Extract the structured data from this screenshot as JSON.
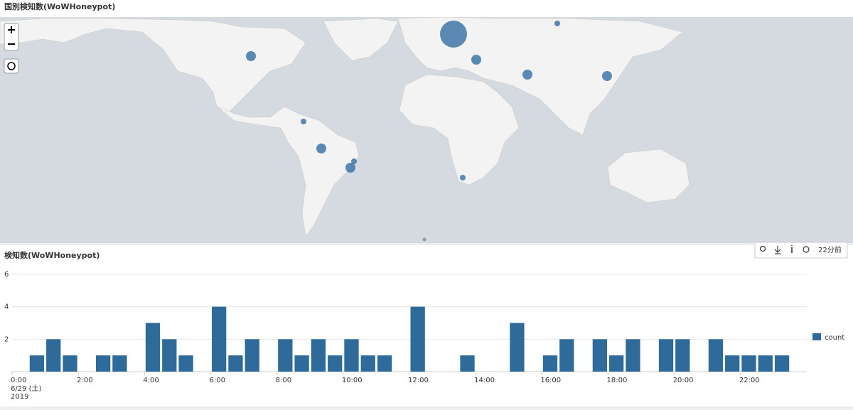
{
  "map_panel": {
    "title": "国別検知数(WoWHoneypot)"
  },
  "toolbar": {
    "time_ago": "22分前"
  },
  "chart_data": {
    "type": "bar",
    "title": "検知数(WoWHoneypot)",
    "x": [
      0.5,
      1,
      1.5,
      2.5,
      3,
      4,
      4.5,
      5,
      6,
      6.5,
      7,
      8,
      8.5,
      9,
      9.5,
      10,
      10.5,
      11,
      12,
      13.5,
      15,
      16,
      16.5,
      17.5,
      18,
      18.5,
      19.5,
      20,
      21,
      21.5,
      22,
      22.5,
      23
    ],
    "series": [
      {
        "name": "count",
        "color": "#2f6b9a",
        "values": [
          1,
          2,
          1,
          1,
          1,
          3,
          2,
          1,
          4,
          1,
          2,
          2,
          1,
          2,
          1,
          2,
          1,
          1,
          4,
          1,
          3,
          1,
          2,
          2,
          1,
          2,
          2,
          2,
          2,
          1,
          1,
          1,
          1
        ]
      }
    ],
    "xlim": [
      0,
      24
    ],
    "xticks": [
      {
        "value": 0,
        "label": "0:00"
      },
      {
        "value": 2,
        "label": "2:00"
      },
      {
        "value": 4,
        "label": "4:00"
      },
      {
        "value": 6,
        "label": "6:00"
      },
      {
        "value": 8,
        "label": "8:00"
      },
      {
        "value": 10,
        "label": "10:00"
      },
      {
        "value": 12,
        "label": "12:00"
      },
      {
        "value": 14,
        "label": "14:00"
      },
      {
        "value": 16,
        "label": "16:00"
      },
      {
        "value": 18,
        "label": "18:00"
      },
      {
        "value": 20,
        "label": "20:00"
      },
      {
        "value": 22,
        "label": "22:00"
      }
    ],
    "x_sublabels": [
      "6/29 (土)",
      "2019"
    ],
    "ylim": [
      0,
      6
    ],
    "yticks": [
      2,
      4,
      6
    ],
    "grid": true,
    "legend": "right"
  }
}
